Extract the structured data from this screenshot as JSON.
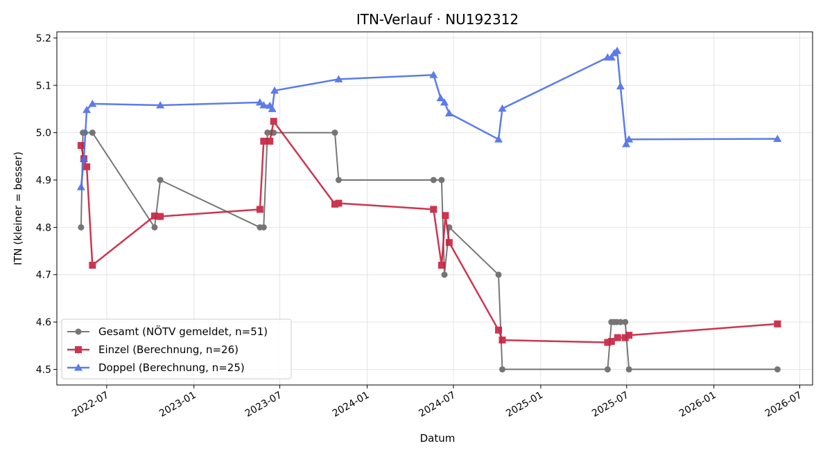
{
  "chart_data": {
    "type": "line",
    "title": "ITN-Verlauf · NU192312",
    "xlabel": "Datum",
    "ylabel": "ITN  (kleiner = besser)",
    "x_axis": {
      "type": "date",
      "range": [
        "2022-03-18",
        "2026-07-28"
      ],
      "ticks": [
        "2022-07-01",
        "2023-01-01",
        "2023-07-01",
        "2024-01-01",
        "2024-07-01",
        "2025-01-01",
        "2025-07-01",
        "2026-01-01",
        "2026-07-01"
      ],
      "tick_labels": [
        "2022-07",
        "2023-01",
        "2023-07",
        "2024-01",
        "2024-07",
        "2025-01",
        "2025-07",
        "2026-01",
        "2026-07"
      ]
    },
    "y_axis": {
      "range": [
        4.467,
        5.213
      ],
      "ticks": [
        4.5,
        4.6,
        4.7,
        4.8,
        4.9,
        5.0,
        5.1,
        5.2
      ],
      "tick_labels": [
        "4.5",
        "4.6",
        "4.7",
        "4.8",
        "4.9",
        "5.0",
        "5.1",
        "5.2"
      ]
    },
    "grid": true,
    "legend_position": "bottom-left",
    "series": [
      {
        "name": "Gesamt (NÖTV gemeldet, n=51)",
        "color": "#555555",
        "marker": "circle",
        "points": [
          [
            "2022-05-08",
            4.8
          ],
          [
            "2022-05-12",
            5.0
          ],
          [
            "2022-05-16",
            5.0
          ],
          [
            "2022-06-01",
            5.0
          ],
          [
            "2022-10-10",
            4.8
          ],
          [
            "2022-10-22",
            4.9
          ],
          [
            "2023-05-20",
            4.8
          ],
          [
            "2023-05-28",
            4.8
          ],
          [
            "2023-06-05",
            5.0
          ],
          [
            "2023-06-14",
            5.0
          ],
          [
            "2023-06-18",
            5.0
          ],
          [
            "2023-10-25",
            5.0
          ],
          [
            "2023-11-02",
            4.9
          ],
          [
            "2024-05-20",
            4.9
          ],
          [
            "2024-06-06",
            4.9
          ],
          [
            "2024-06-12",
            4.7
          ],
          [
            "2024-06-22",
            4.8
          ],
          [
            "2024-10-04",
            4.7
          ],
          [
            "2024-10-12",
            4.5
          ],
          [
            "2025-05-22",
            4.5
          ],
          [
            "2025-05-30",
            4.6
          ],
          [
            "2025-06-05",
            4.6
          ],
          [
            "2025-06-10",
            4.6
          ],
          [
            "2025-06-18",
            4.6
          ],
          [
            "2025-06-28",
            4.6
          ],
          [
            "2025-07-06",
            4.5
          ],
          [
            "2026-05-15",
            4.5
          ]
        ]
      },
      {
        "name": "Einzel (Berechnung, n=26)",
        "color": "#c7203e",
        "marker": "square",
        "points": [
          [
            "2022-05-08",
            4.973
          ],
          [
            "2022-05-14",
            4.945
          ],
          [
            "2022-05-20",
            4.928
          ],
          [
            "2022-06-01",
            4.72
          ],
          [
            "2022-10-10",
            4.824
          ],
          [
            "2022-10-22",
            4.823
          ],
          [
            "2023-05-20",
            4.838
          ],
          [
            "2023-05-28",
            4.982
          ],
          [
            "2023-06-10",
            4.982
          ],
          [
            "2023-06-18",
            5.024
          ],
          [
            "2023-10-25",
            4.849
          ],
          [
            "2023-11-02",
            4.851
          ],
          [
            "2024-05-20",
            4.838
          ],
          [
            "2024-06-06",
            4.72
          ],
          [
            "2024-06-14",
            4.825
          ],
          [
            "2024-06-22",
            4.768
          ],
          [
            "2024-10-04",
            4.583
          ],
          [
            "2024-10-12",
            4.562
          ],
          [
            "2025-05-22",
            4.557
          ],
          [
            "2025-05-30",
            4.559
          ],
          [
            "2025-06-12",
            4.567
          ],
          [
            "2025-06-28",
            4.567
          ],
          [
            "2025-07-06",
            4.572
          ],
          [
            "2026-05-15",
            4.596
          ]
        ]
      },
      {
        "name": "Doppel (Berechnung, n=25)",
        "color": "#4a6ee8",
        "marker": "triangle",
        "points": [
          [
            "2022-05-08",
            4.885
          ],
          [
            "2022-05-14",
            4.945
          ],
          [
            "2022-05-20",
            5.048
          ],
          [
            "2022-06-01",
            5.061
          ],
          [
            "2022-10-22",
            5.058
          ],
          [
            "2023-05-20",
            5.064
          ],
          [
            "2023-05-28",
            5.058
          ],
          [
            "2023-06-10",
            5.057
          ],
          [
            "2023-06-15",
            5.05
          ],
          [
            "2023-06-20",
            5.089
          ],
          [
            "2023-11-02",
            5.113
          ],
          [
            "2024-05-20",
            5.122
          ],
          [
            "2024-06-04",
            5.073
          ],
          [
            "2024-06-12",
            5.064
          ],
          [
            "2024-06-22",
            5.041
          ],
          [
            "2024-10-04",
            4.986
          ],
          [
            "2024-10-12",
            5.051
          ],
          [
            "2025-05-22",
            5.159
          ],
          [
            "2025-05-30",
            5.159
          ],
          [
            "2025-06-05",
            5.168
          ],
          [
            "2025-06-11",
            5.173
          ],
          [
            "2025-06-18",
            5.098
          ],
          [
            "2025-06-30",
            4.976
          ],
          [
            "2025-07-06",
            4.986
          ],
          [
            "2026-05-15",
            4.987
          ]
        ]
      }
    ]
  }
}
